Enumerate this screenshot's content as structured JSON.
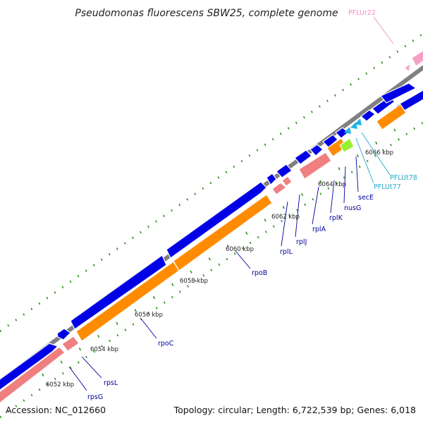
{
  "title": "Pseudomonas fluorescens SBW25, complete genome",
  "accession": "Accession: NC_012660",
  "stats": "Topology: circular; Length: 6,722,539 bp; Genes: 6,018",
  "colors": {
    "cds": "#0000e6",
    "rrna_trna_track": "#f08080",
    "orange_track": "#ff8c00",
    "trna": "#1eb4e6",
    "pink_gene": "#f5a0c8",
    "green_gene": "#99ee33",
    "ticks": "#2f8f1f",
    "backbone": "#808080",
    "gene_label": "#000099",
    "trna_label": "#22aacc",
    "pink_label": "#f08cbe"
  },
  "coordinate_labels": [
    "6052 kbp",
    "6054 kbp",
    "6056 kbp",
    "6058 kbp",
    "6060 kbp",
    "6062 kbp",
    "6064 kbp",
    "6066 kbp"
  ],
  "gene_labels": [
    {
      "name": "rpsG",
      "kind": "gene"
    },
    {
      "name": "rpsL",
      "kind": "gene"
    },
    {
      "name": "rpoC",
      "kind": "gene"
    },
    {
      "name": "rpoB",
      "kind": "gene"
    },
    {
      "name": "rplL",
      "kind": "gene"
    },
    {
      "name": "rplJ",
      "kind": "gene"
    },
    {
      "name": "rplA",
      "kind": "gene"
    },
    {
      "name": "rplK",
      "kind": "gene"
    },
    {
      "name": "nusG",
      "kind": "gene"
    },
    {
      "name": "secE",
      "kind": "gene"
    },
    {
      "name": "PFLUt77",
      "kind": "trna"
    },
    {
      "name": "PFLUt78",
      "kind": "trna"
    },
    {
      "name": "PFLUr22",
      "kind": "rrna"
    }
  ]
}
